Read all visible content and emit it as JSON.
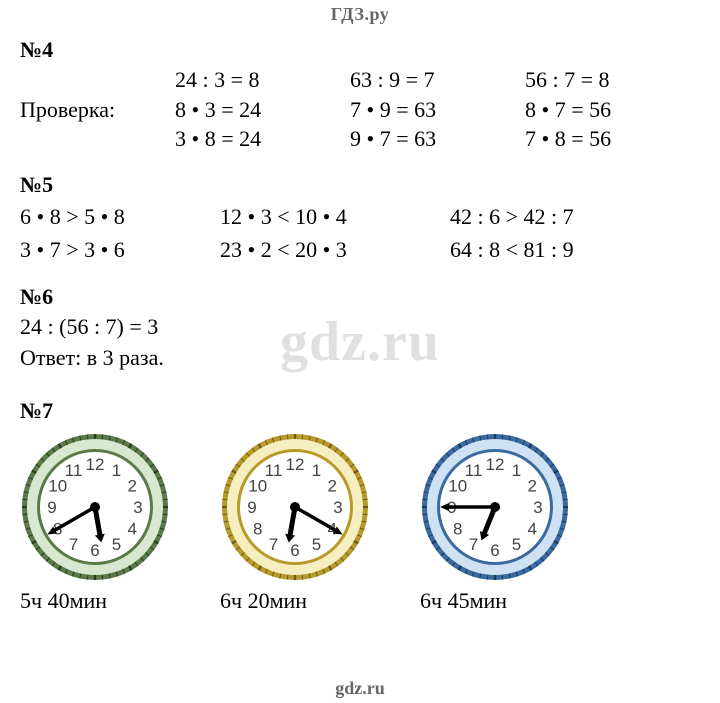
{
  "header": {
    "link": "ГДЗ.ру"
  },
  "footer": {
    "link": "gdz.ru"
  },
  "watermark": {
    "text": "gdz.ru"
  },
  "sec4": {
    "title": "№4",
    "check_label": "Проверка:",
    "rows": [
      {
        "label": "",
        "c1": "24 : 3 = 8",
        "c2": "63 : 9 = 7",
        "c3": "56 : 7 = 8"
      },
      {
        "label": "Проверка:",
        "c1": "8 • 3 = 24",
        "c2": "7 • 9 = 63",
        "c3": "8 • 7 = 56"
      },
      {
        "label": "",
        "c1": "3 • 8 = 24",
        "c2": "9 • 7 = 63",
        "c3": "7 • 8 = 56"
      }
    ]
  },
  "sec5": {
    "title": "№5",
    "rows": [
      {
        "a": "6 • 8 > 5 • 8",
        "b": "12 • 3 < 10 • 4",
        "c": "42 : 6 > 42 : 7"
      },
      {
        "a": "3 • 7 > 3 • 6",
        "b": "23 • 2 < 20 • 3",
        "c": "64 : 8 < 81 : 9"
      }
    ]
  },
  "sec6": {
    "title": "№6",
    "line1": "24 : (56 : 7) = 3",
    "line2": "Ответ: в 3 раза."
  },
  "sec7": {
    "title": "№7",
    "clocks": [
      {
        "label": "5ч 40мин",
        "hour_angle": 170,
        "minute_angle": 240,
        "rim_outer": "#5a7a4a",
        "rim_inner": "#d8e8d0",
        "face": "#ffffff",
        "tick_color": "#2a3a22",
        "num_color": "#444444",
        "hand_color": "#000000"
      },
      {
        "label": "6ч 20мин",
        "hour_angle": 190,
        "minute_angle": 120,
        "rim_outer": "#b89a2a",
        "rim_inner": "#f5eec0",
        "face": "#ffffff",
        "tick_color": "#6a5a1a",
        "num_color": "#444444",
        "hand_color": "#000000"
      },
      {
        "label": "6ч 45мин",
        "hour_angle": 202,
        "minute_angle": 270,
        "rim_outer": "#3a6aa0",
        "rim_inner": "#cfe2f3",
        "face": "#ffffff",
        "tick_color": "#1a3a5a",
        "num_color": "#444444",
        "hand_color": "#000000"
      }
    ]
  }
}
